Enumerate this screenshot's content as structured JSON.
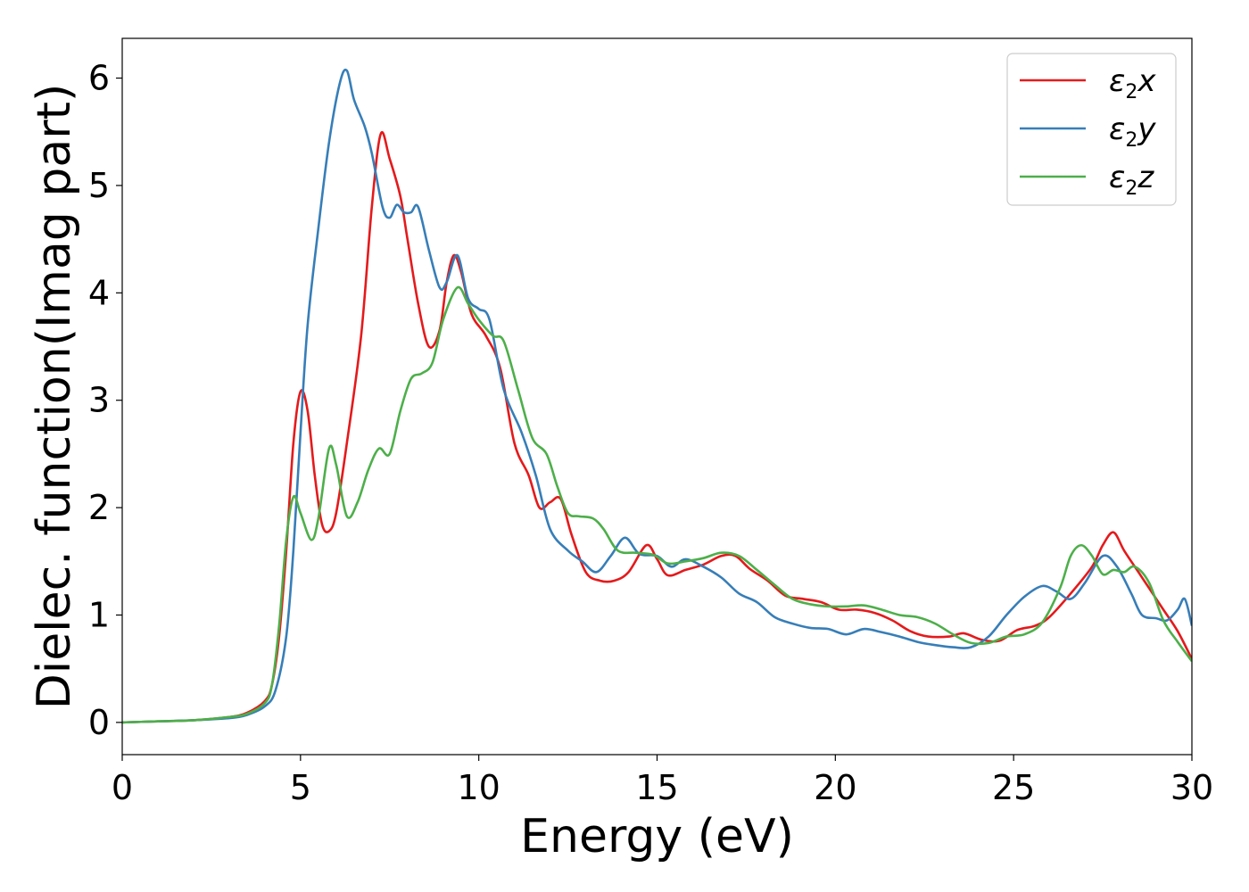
{
  "chart_data": {
    "type": "line",
    "title": "",
    "xlabel": "Energy (eV)",
    "ylabel": "Dielec. function(Imag part)",
    "xlim": [
      0,
      30
    ],
    "ylim": [
      -0.3,
      6.37
    ],
    "xticks": [
      0,
      5,
      10,
      15,
      20,
      25,
      30
    ],
    "yticks": [
      0,
      1,
      2,
      3,
      4,
      5,
      6
    ],
    "grid": false,
    "legend_position": "top-right",
    "series": [
      {
        "name": "ε2x",
        "legend_base": "ε",
        "legend_sub": "2",
        "legend_var": "x",
        "color": "#e41a1c",
        "points": [
          [
            0,
            0
          ],
          [
            1,
            0.01
          ],
          [
            2,
            0.02
          ],
          [
            3,
            0.05
          ],
          [
            3.5,
            0.09
          ],
          [
            4,
            0.2
          ],
          [
            4.2,
            0.35
          ],
          [
            4.4,
            0.8
          ],
          [
            4.6,
            1.6
          ],
          [
            4.8,
            2.6
          ],
          [
            5.0,
            3.08
          ],
          [
            5.2,
            2.9
          ],
          [
            5.4,
            2.3
          ],
          [
            5.6,
            1.85
          ],
          [
            5.8,
            1.78
          ],
          [
            6.0,
            1.95
          ],
          [
            6.3,
            2.6
          ],
          [
            6.7,
            3.6
          ],
          [
            7.0,
            4.8
          ],
          [
            7.25,
            5.48
          ],
          [
            7.5,
            5.25
          ],
          [
            7.8,
            4.9
          ],
          [
            8.0,
            4.5
          ],
          [
            8.3,
            3.9
          ],
          [
            8.6,
            3.5
          ],
          [
            8.9,
            3.65
          ],
          [
            9.1,
            4.1
          ],
          [
            9.3,
            4.35
          ],
          [
            9.5,
            4.2
          ],
          [
            9.8,
            3.8
          ],
          [
            10.2,
            3.6
          ],
          [
            10.6,
            3.3
          ],
          [
            11.0,
            2.6
          ],
          [
            11.4,
            2.3
          ],
          [
            11.7,
            2.0
          ],
          [
            12.0,
            2.05
          ],
          [
            12.3,
            2.08
          ],
          [
            12.6,
            1.75
          ],
          [
            13.0,
            1.4
          ],
          [
            13.4,
            1.32
          ],
          [
            13.8,
            1.32
          ],
          [
            14.2,
            1.4
          ],
          [
            14.7,
            1.65
          ],
          [
            15.0,
            1.52
          ],
          [
            15.3,
            1.37
          ],
          [
            15.8,
            1.42
          ],
          [
            16.3,
            1.47
          ],
          [
            16.8,
            1.55
          ],
          [
            17.2,
            1.55
          ],
          [
            17.6,
            1.43
          ],
          [
            18.1,
            1.32
          ],
          [
            18.6,
            1.18
          ],
          [
            19.1,
            1.15
          ],
          [
            19.6,
            1.12
          ],
          [
            20.1,
            1.05
          ],
          [
            20.6,
            1.05
          ],
          [
            21.1,
            1.02
          ],
          [
            21.6,
            0.95
          ],
          [
            22.1,
            0.85
          ],
          [
            22.6,
            0.8
          ],
          [
            23.2,
            0.8
          ],
          [
            23.6,
            0.83
          ],
          [
            24.1,
            0.77
          ],
          [
            24.6,
            0.76
          ],
          [
            25.1,
            0.86
          ],
          [
            25.6,
            0.9
          ],
          [
            26.0,
            0.98
          ],
          [
            26.6,
            1.2
          ],
          [
            27.2,
            1.45
          ],
          [
            27.5,
            1.65
          ],
          [
            27.8,
            1.77
          ],
          [
            28.1,
            1.6
          ],
          [
            28.5,
            1.4
          ],
          [
            28.8,
            1.25
          ],
          [
            29.2,
            1.05
          ],
          [
            29.6,
            0.85
          ],
          [
            30.0,
            0.59
          ]
        ]
      },
      {
        "name": "ε2y",
        "legend_base": "ε",
        "legend_sub": "2",
        "legend_var": "y",
        "color": "#377eb8",
        "points": [
          [
            0,
            0
          ],
          [
            1,
            0.01
          ],
          [
            2,
            0.02
          ],
          [
            3,
            0.04
          ],
          [
            3.5,
            0.07
          ],
          [
            4,
            0.15
          ],
          [
            4.3,
            0.3
          ],
          [
            4.6,
            0.8
          ],
          [
            4.8,
            1.6
          ],
          [
            5.0,
            2.7
          ],
          [
            5.2,
            3.7
          ],
          [
            5.5,
            4.6
          ],
          [
            5.8,
            5.4
          ],
          [
            6.1,
            5.95
          ],
          [
            6.3,
            6.07
          ],
          [
            6.5,
            5.8
          ],
          [
            6.8,
            5.55
          ],
          [
            7.0,
            5.3
          ],
          [
            7.3,
            4.8
          ],
          [
            7.5,
            4.7
          ],
          [
            7.7,
            4.82
          ],
          [
            7.9,
            4.75
          ],
          [
            8.1,
            4.75
          ],
          [
            8.3,
            4.8
          ],
          [
            8.6,
            4.4
          ],
          [
            8.9,
            4.05
          ],
          [
            9.1,
            4.1
          ],
          [
            9.4,
            4.35
          ],
          [
            9.7,
            3.95
          ],
          [
            10.0,
            3.85
          ],
          [
            10.3,
            3.75
          ],
          [
            10.7,
            3.1
          ],
          [
            11.2,
            2.7
          ],
          [
            11.6,
            2.3
          ],
          [
            12.0,
            1.8
          ],
          [
            12.5,
            1.6
          ],
          [
            12.9,
            1.5
          ],
          [
            13.3,
            1.4
          ],
          [
            13.7,
            1.55
          ],
          [
            14.1,
            1.72
          ],
          [
            14.5,
            1.57
          ],
          [
            15.0,
            1.55
          ],
          [
            15.4,
            1.45
          ],
          [
            15.8,
            1.52
          ],
          [
            16.3,
            1.45
          ],
          [
            16.8,
            1.35
          ],
          [
            17.3,
            1.2
          ],
          [
            17.8,
            1.12
          ],
          [
            18.3,
            0.98
          ],
          [
            18.8,
            0.92
          ],
          [
            19.3,
            0.88
          ],
          [
            19.8,
            0.87
          ],
          [
            20.3,
            0.82
          ],
          [
            20.8,
            0.87
          ],
          [
            21.3,
            0.84
          ],
          [
            21.8,
            0.8
          ],
          [
            22.3,
            0.75
          ],
          [
            22.8,
            0.72
          ],
          [
            23.3,
            0.7
          ],
          [
            23.8,
            0.7
          ],
          [
            24.3,
            0.8
          ],
          [
            24.8,
            1.0
          ],
          [
            25.3,
            1.17
          ],
          [
            25.8,
            1.27
          ],
          [
            26.2,
            1.22
          ],
          [
            26.6,
            1.15
          ],
          [
            27.0,
            1.3
          ],
          [
            27.5,
            1.55
          ],
          [
            27.9,
            1.45
          ],
          [
            28.3,
            1.2
          ],
          [
            28.6,
            1.0
          ],
          [
            29.0,
            0.97
          ],
          [
            29.3,
            0.95
          ],
          [
            29.6,
            1.05
          ],
          [
            29.8,
            1.15
          ],
          [
            30.0,
            0.9
          ]
        ]
      },
      {
        "name": "ε2z",
        "legend_base": "ε",
        "legend_sub": "2",
        "legend_var": "z",
        "color": "#4daf4a",
        "points": [
          [
            0,
            0
          ],
          [
            1,
            0.01
          ],
          [
            2,
            0.02
          ],
          [
            3,
            0.05
          ],
          [
            3.5,
            0.08
          ],
          [
            4,
            0.18
          ],
          [
            4.2,
            0.35
          ],
          [
            4.4,
            0.9
          ],
          [
            4.6,
            1.7
          ],
          [
            4.8,
            2.1
          ],
          [
            5.0,
            1.95
          ],
          [
            5.3,
            1.7
          ],
          [
            5.5,
            1.9
          ],
          [
            5.8,
            2.55
          ],
          [
            6.0,
            2.4
          ],
          [
            6.3,
            1.92
          ],
          [
            6.6,
            2.05
          ],
          [
            6.9,
            2.35
          ],
          [
            7.2,
            2.55
          ],
          [
            7.5,
            2.5
          ],
          [
            7.8,
            2.9
          ],
          [
            8.1,
            3.2
          ],
          [
            8.4,
            3.25
          ],
          [
            8.7,
            3.35
          ],
          [
            9.0,
            3.75
          ],
          [
            9.4,
            4.05
          ],
          [
            9.7,
            3.9
          ],
          [
            10.0,
            3.75
          ],
          [
            10.4,
            3.6
          ],
          [
            10.7,
            3.55
          ],
          [
            11.1,
            3.1
          ],
          [
            11.5,
            2.65
          ],
          [
            11.9,
            2.5
          ],
          [
            12.2,
            2.2
          ],
          [
            12.5,
            1.95
          ],
          [
            12.8,
            1.92
          ],
          [
            13.2,
            1.9
          ],
          [
            13.5,
            1.8
          ],
          [
            13.9,
            1.6
          ],
          [
            14.4,
            1.58
          ],
          [
            14.9,
            1.56
          ],
          [
            15.3,
            1.48
          ],
          [
            15.8,
            1.5
          ],
          [
            16.3,
            1.53
          ],
          [
            16.8,
            1.58
          ],
          [
            17.3,
            1.55
          ],
          [
            17.8,
            1.42
          ],
          [
            18.3,
            1.28
          ],
          [
            18.8,
            1.15
          ],
          [
            19.3,
            1.1
          ],
          [
            19.8,
            1.08
          ],
          [
            20.3,
            1.08
          ],
          [
            20.8,
            1.09
          ],
          [
            21.3,
            1.05
          ],
          [
            21.8,
            1.0
          ],
          [
            22.3,
            0.98
          ],
          [
            22.8,
            0.92
          ],
          [
            23.3,
            0.82
          ],
          [
            23.8,
            0.74
          ],
          [
            24.3,
            0.74
          ],
          [
            24.8,
            0.8
          ],
          [
            25.3,
            0.82
          ],
          [
            25.8,
            0.93
          ],
          [
            26.3,
            1.25
          ],
          [
            26.6,
            1.55
          ],
          [
            26.9,
            1.65
          ],
          [
            27.2,
            1.55
          ],
          [
            27.5,
            1.38
          ],
          [
            27.8,
            1.42
          ],
          [
            28.1,
            1.4
          ],
          [
            28.4,
            1.45
          ],
          [
            28.8,
            1.3
          ],
          [
            29.2,
            0.95
          ],
          [
            29.6,
            0.75
          ],
          [
            30.0,
            0.57
          ]
        ]
      }
    ]
  }
}
